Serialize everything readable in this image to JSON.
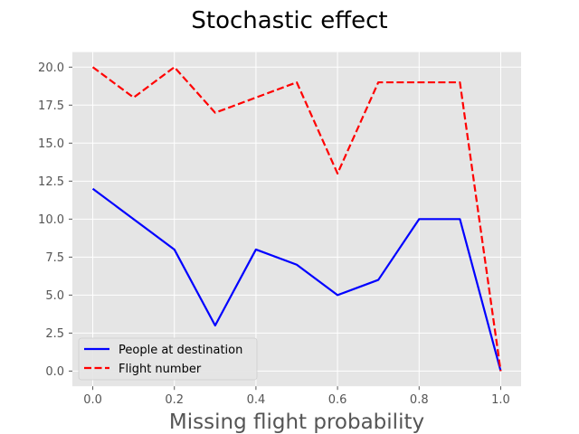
{
  "chart_data": {
    "type": "line",
    "title": "Stochastic effect",
    "xlabel": "Missing flight probability",
    "ylabel": "",
    "xlim": [
      -0.05,
      1.05
    ],
    "ylim": [
      -0.9996,
      20.9916
    ],
    "xticks": [
      0.0,
      0.2,
      0.4,
      0.6,
      0.8,
      1.0
    ],
    "xtick_labels": [
      "0.0",
      "0.2",
      "0.4",
      "0.6",
      "0.8",
      "1.0"
    ],
    "yticks": [
      0,
      2.5,
      5,
      7.5,
      10,
      12.5,
      15,
      17.5,
      20
    ],
    "ytick_labels": [
      "0.0",
      "2.5",
      "5.0",
      "7.5",
      "10.0",
      "12.5",
      "15.0",
      "17.5",
      "20.0"
    ],
    "grid": true,
    "legend_position": "lower-left",
    "x": [
      0.0,
      0.1,
      0.2,
      0.3,
      0.4,
      0.5,
      0.6,
      0.7,
      0.8,
      0.9,
      1.0
    ],
    "series": [
      {
        "name": "People at destination",
        "color": "#0000ff",
        "style": "solid",
        "values": [
          12,
          10,
          8,
          3,
          8,
          7,
          5,
          6,
          10,
          10,
          0
        ]
      },
      {
        "name": "Flight number",
        "color": "#ff0000",
        "style": "dashed",
        "values": [
          20,
          18,
          20,
          17,
          18,
          19,
          13,
          19,
          19,
          19,
          0
        ]
      }
    ]
  },
  "colors": {
    "plot_background": "#e5e5e5",
    "grid": "#ffffff"
  }
}
